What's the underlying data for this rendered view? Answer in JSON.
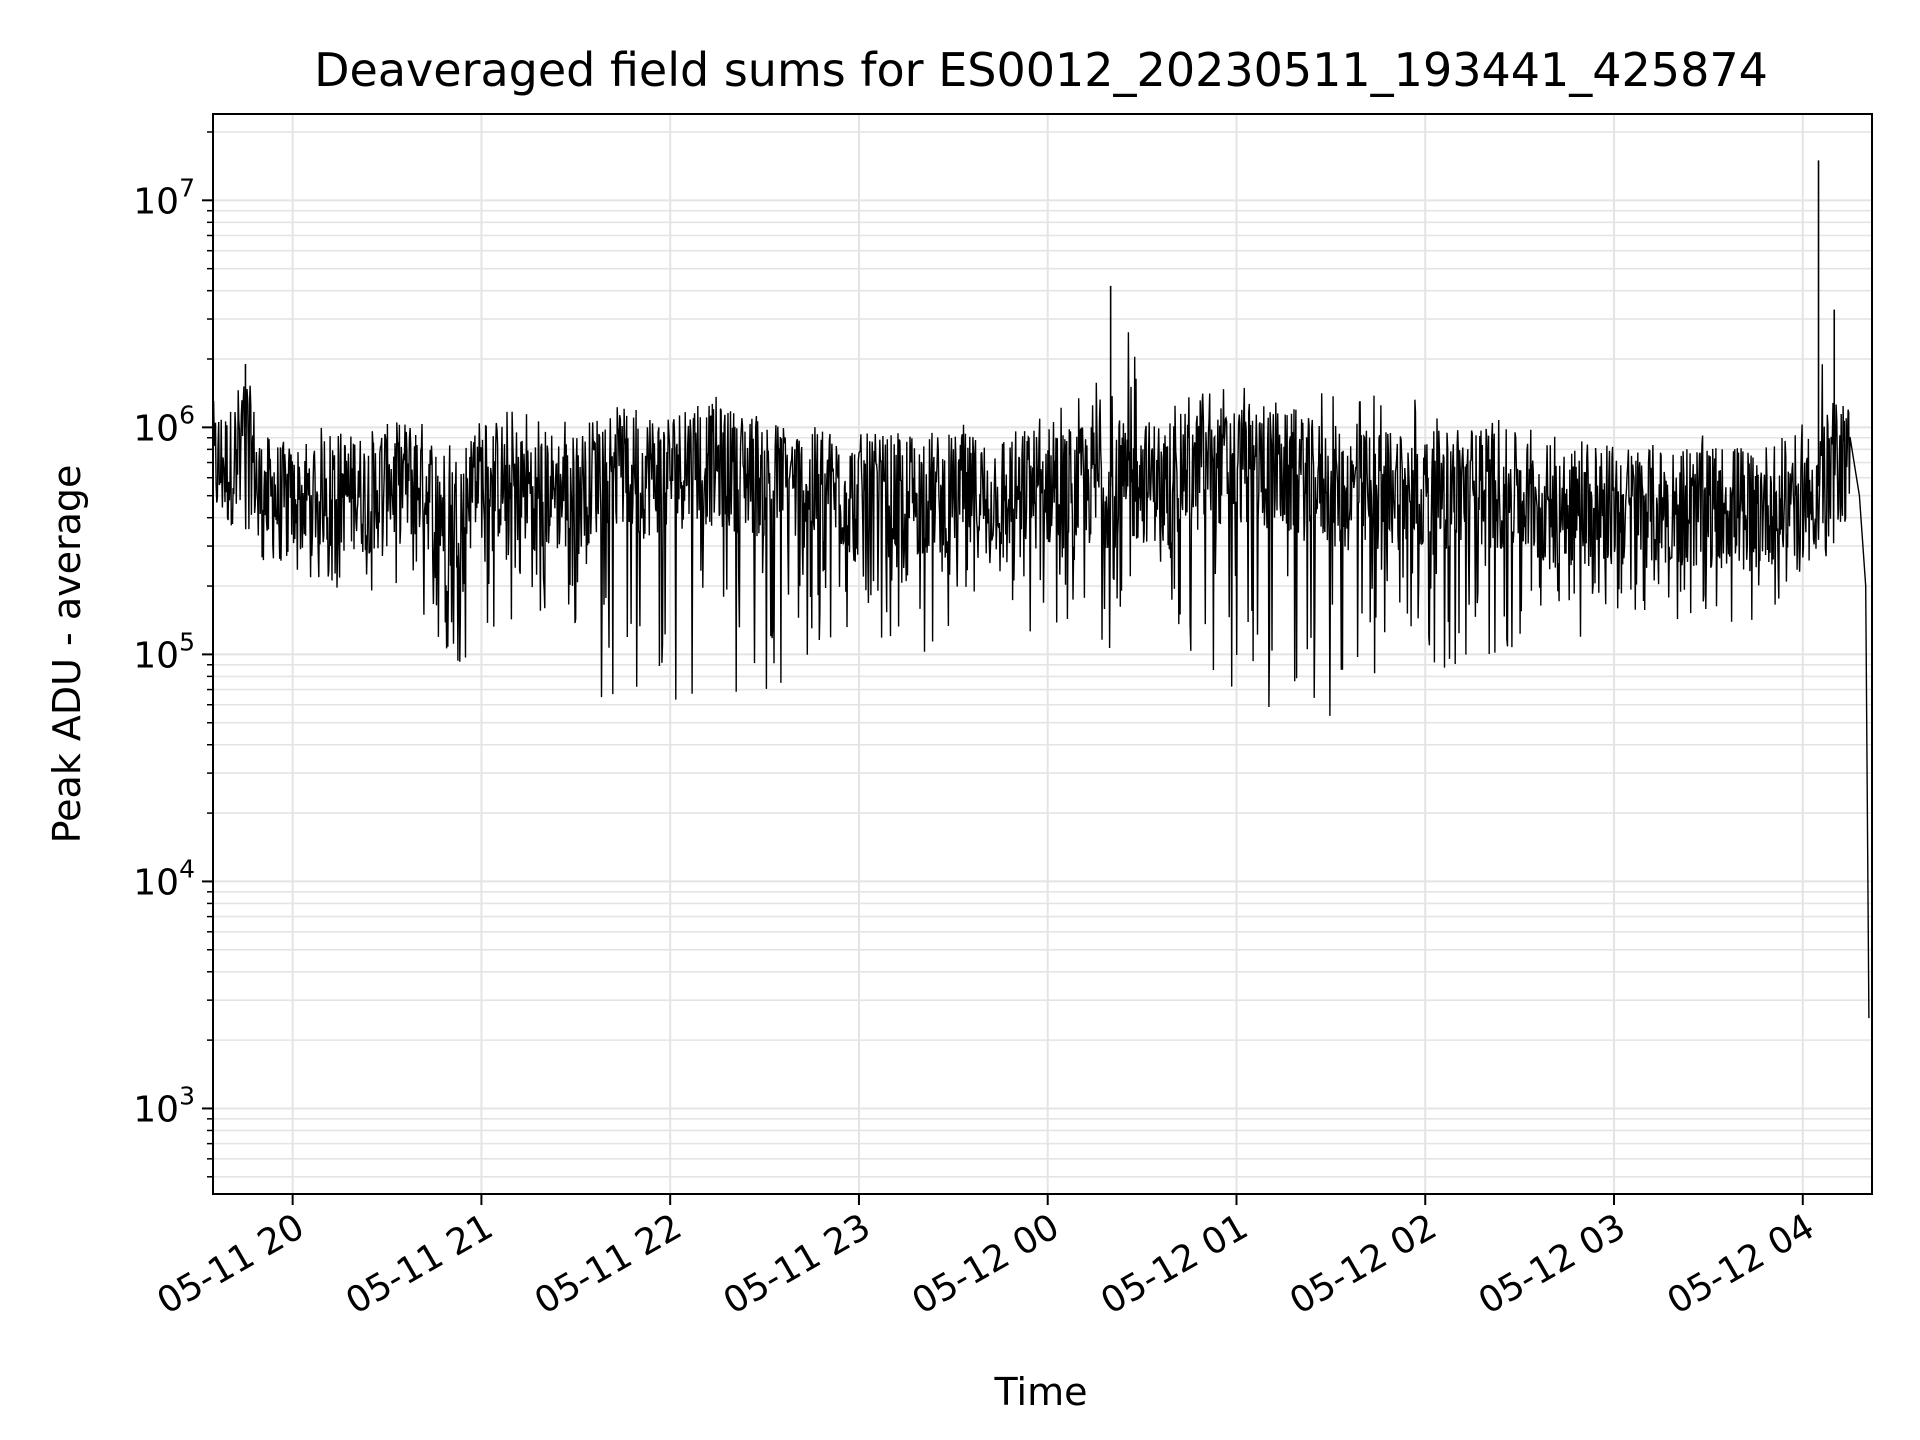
{
  "chart_data": {
    "type": "line",
    "title": "Deaveraged field sums for ES0012_20230511_193441_425874",
    "xlabel": "Time",
    "ylabel": "Peak ADU - average",
    "y_scale": "log",
    "ylim": [
      420,
      24000000
    ],
    "xlim": [
      "2023-05-11 19:34:41",
      "2023-05-12 04:22:00"
    ],
    "grid": true,
    "line_color": "#000000",
    "grid_color": "#e4e4e4",
    "x_ticks": [
      {
        "label": "05-11 20",
        "time": "2023-05-11 20:00"
      },
      {
        "label": "05-11 21",
        "time": "2023-05-11 21:00"
      },
      {
        "label": "05-11 22",
        "time": "2023-05-11 22:00"
      },
      {
        "label": "05-11 23",
        "time": "2023-05-11 23:00"
      },
      {
        "label": "05-12 00",
        "time": "2023-05-12 00:00"
      },
      {
        "label": "05-12 01",
        "time": "2023-05-12 01:00"
      },
      {
        "label": "05-12 02",
        "time": "2023-05-12 02:00"
      },
      {
        "label": "05-12 03",
        "time": "2023-05-12 03:00"
      },
      {
        "label": "05-12 04",
        "time": "2023-05-12 04:00"
      }
    ],
    "y_ticks": [
      {
        "base": "10",
        "exp": "3",
        "value": 1000
      },
      {
        "base": "10",
        "exp": "4",
        "value": 10000
      },
      {
        "base": "10",
        "exp": "5",
        "value": 100000
      },
      {
        "base": "10",
        "exp": "6",
        "value": 1000000
      },
      {
        "base": "10",
        "exp": "7",
        "value": 10000000
      }
    ],
    "series": [
      {
        "x": [
          "2023-05-11 19:34:41",
          "2023-05-11 19:40",
          "2023-05-11 19:45",
          "2023-05-11 19:50",
          "2023-05-11 20:00",
          "2023-05-11 20:10",
          "2023-05-11 20:20",
          "2023-05-11 20:30",
          "2023-05-11 20:40",
          "2023-05-11 20:50",
          "2023-05-11 21:00",
          "2023-05-11 21:15",
          "2023-05-11 21:30",
          "2023-05-11 21:40",
          "2023-05-11 21:50",
          "2023-05-11 22:00",
          "2023-05-11 22:10",
          "2023-05-11 22:20",
          "2023-05-11 22:30",
          "2023-05-11 22:40",
          "2023-05-11 23:00",
          "2023-05-11 23:20",
          "2023-05-11 23:40",
          "2023-05-12 00:00",
          "2023-05-12 00:10",
          "2023-05-12 00:20",
          "2023-05-12 00:40",
          "2023-05-12 00:50",
          "2023-05-12 01:00",
          "2023-05-12 01:10",
          "2023-05-12 01:20",
          "2023-05-12 01:30",
          "2023-05-12 01:40",
          "2023-05-12 01:50",
          "2023-05-12 02:00",
          "2023-05-12 02:10",
          "2023-05-12 02:20",
          "2023-05-12 02:30",
          "2023-05-12 02:40",
          "2023-05-12 02:50",
          "2023-05-12 03:00",
          "2023-05-12 03:15",
          "2023-05-12 03:30",
          "2023-05-12 03:45",
          "2023-05-12 04:00",
          "2023-05-12 04:05",
          "2023-05-12 04:10",
          "2023-05-12 04:15",
          "2023-05-12 04:18",
          "2023-05-12 04:20",
          "2023-05-12 04:21"
        ],
        "y_mid": [
          700000,
          650000,
          1000000,
          500000,
          450000,
          550000,
          500000,
          550000,
          600000,
          400000,
          600000,
          550000,
          500000,
          700000,
          600000,
          650000,
          700000,
          650000,
          600000,
          550000,
          500000,
          500000,
          500000,
          550000,
          550000,
          550000,
          600000,
          650000,
          700000,
          650000,
          600000,
          550000,
          500000,
          550000,
          500000,
          550000,
          550000,
          500000,
          450000,
          450000,
          450000,
          450000,
          450000,
          450000,
          500000,
          550000,
          700000,
          700000,
          500000,
          200000,
          2500
        ],
        "y_max": [
          850000,
          1000000,
          1900000,
          900000,
          900000,
          1000000,
          1000000,
          1100000,
          1200000,
          1300000,
          1300000,
          1300000,
          1300000,
          1400000,
          1500000,
          1500000,
          1500000,
          1450000,
          1300000,
          1200000,
          1000000,
          1000000,
          1200000,
          1400000,
          1500000,
          4200000,
          1500000,
          1600000,
          1700000,
          1750000,
          1700000,
          1700000,
          1700000,
          1700000,
          1500000,
          1400000,
          1200000,
          1200000,
          1100000,
          1000000,
          1000000,
          1000000,
          1000000,
          1000000,
          1300000,
          15000000,
          3300000,
          1200000,
          700000,
          350000,
          2800
        ],
        "y_min": [
          600000,
          400000,
          300000,
          250000,
          200000,
          200000,
          180000,
          170000,
          150000,
          75000,
          120000,
          150000,
          130000,
          50000,
          55000,
          60000,
          70000,
          70000,
          55000,
          80000,
          130000,
          100000,
          150000,
          100000,
          120000,
          100000,
          160000,
          55000,
          60000,
          55000,
          50000,
          50000,
          70000,
          80000,
          100000,
          75000,
          80000,
          100000,
          110000,
          120000,
          150000,
          150000,
          130000,
          140000,
          140000,
          250000,
          250000,
          350000,
          300000,
          2500,
          1100
        ]
      }
    ]
  }
}
